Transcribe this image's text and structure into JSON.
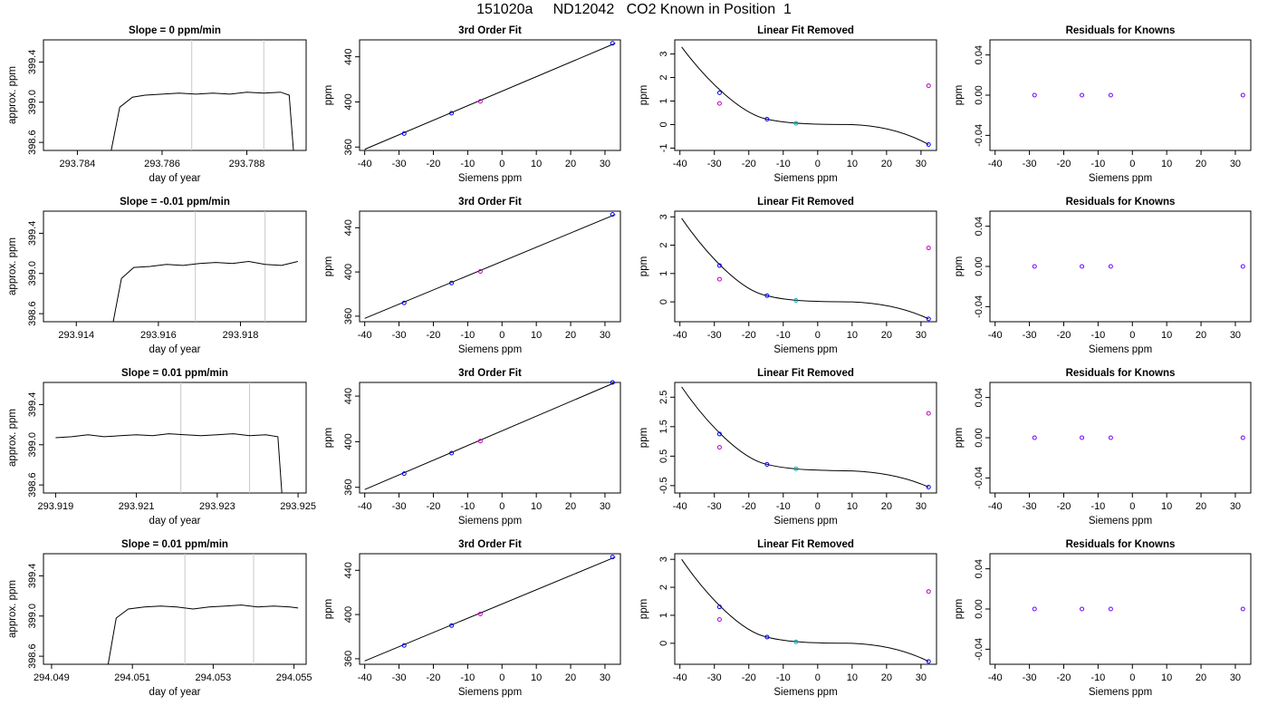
{
  "page_title": "151020a     ND12042   CO2 Known in Position  1",
  "colors": {
    "axis": "#000000",
    "trace": "#000000",
    "fit_line": "#000000",
    "vline": "#c8c8c8",
    "point_blue": "#0000ff",
    "point_magenta": "#c000c0",
    "point_cyan": "#00b0c0",
    "point_purple": "#8000ff",
    "residual_point": "#7000ff"
  },
  "common": {
    "ts_xlabel": "day of year",
    "ts_ylabel": "approx. ppm",
    "fit_title": "3rd Order Fit",
    "fit_xlabel": "Siemens ppm",
    "fit_ylabel": "ppm",
    "lin_title": "Linear Fit Removed",
    "lin_xlabel": "Siemens ppm",
    "lin_ylabel": "ppm",
    "res_title": "Residuals for Knowns",
    "res_xlabel": "Siemens ppm",
    "res_ylabel": "ppm"
  },
  "chart_data": [
    {
      "type": "line",
      "row": 1,
      "panel": "timeseries",
      "title": "Slope =  0  ppm/min",
      "xlabel": "day of year",
      "ylabel": "approx. ppm",
      "xlim": [
        293.7832,
        293.7894
      ],
      "ylim": [
        398.52,
        399.62
      ],
      "xticks": [
        "293.784",
        "293.786",
        "293.788"
      ],
      "yticks": [
        "398.6",
        "399.0",
        "399.4"
      ],
      "vlines": [
        293.7867,
        293.7884
      ],
      "series": [
        {
          "x": [
            293.7848,
            293.785,
            293.7853,
            293.7856,
            293.786,
            293.7864,
            293.7868,
            293.7872,
            293.7876,
            293.788,
            293.7884,
            293.7888,
            293.789,
            293.7891
          ],
          "y": [
            398.5,
            398.95,
            399.05,
            399.07,
            399.08,
            399.09,
            399.08,
            399.09,
            399.08,
            399.1,
            399.09,
            399.1,
            399.07,
            398.5
          ]
        }
      ]
    },
    {
      "type": "line",
      "row": 1,
      "panel": "third_order_fit",
      "title": "3rd Order Fit",
      "xlabel": "Siemens ppm",
      "ylabel": "ppm",
      "xlim": [
        -41.5,
        34.5
      ],
      "ylim": [
        357,
        455
      ],
      "xticks": [
        "-40",
        "-30",
        "-20",
        "-10",
        "0",
        "10",
        "20",
        "30"
      ],
      "yticks": [
        "360",
        "400",
        "440"
      ],
      "fit_line": {
        "x": [
          -40,
          33
        ],
        "y": [
          358,
          452
        ]
      },
      "points": {
        "x": [
          -28.5,
          -14.7,
          -6.3,
          32.2
        ],
        "y": [
          372,
          390,
          400.5,
          452
        ]
      }
    },
    {
      "type": "scatter",
      "row": 1,
      "panel": "linear_fit_removed",
      "title": "Linear Fit Removed",
      "xlabel": "Siemens ppm",
      "ylabel": "ppm",
      "xlim": [
        -41.5,
        34.5
      ],
      "ylim": [
        -1.1,
        3.6
      ],
      "xticks": [
        "-40",
        "-30",
        "-20",
        "-10",
        "0",
        "10",
        "20",
        "30"
      ],
      "yticks": [
        "-1",
        "0",
        "1",
        "2",
        "3"
      ],
      "curve": [
        3.3,
        0.44,
        0.1
      ],
      "points_fit": {
        "x": [
          -28.5,
          -14.7,
          -6.3,
          32.2
        ],
        "y": [
          1.35,
          0.23,
          0.05,
          -0.85
        ]
      },
      "points_raw": {
        "x": [
          -28.5,
          32.2
        ],
        "y": [
          0.9,
          1.65
        ]
      }
    },
    {
      "type": "scatter",
      "row": 1,
      "panel": "residuals",
      "title": "Residuals for Knowns",
      "xlabel": "Siemens ppm",
      "ylabel": "ppm",
      "xlim": [
        -41.5,
        34.5
      ],
      "ylim": [
        -0.055,
        0.055
      ],
      "xticks": [
        "-40",
        "-30",
        "-20",
        "-10",
        "0",
        "10",
        "20",
        "30"
      ],
      "yticks": [
        "-0.04",
        "0.00",
        "0.04"
      ],
      "points": {
        "x": [
          -28.5,
          -14.7,
          -6.3,
          32.2
        ],
        "y": [
          0,
          0,
          0,
          0
        ]
      }
    },
    {
      "type": "line",
      "row": 2,
      "panel": "timeseries",
      "title": "Slope =  -0.01  ppm/min",
      "xlabel": "day of year",
      "ylabel": "approx. ppm",
      "xlim": [
        293.9132,
        293.9196
      ],
      "ylim": [
        398.52,
        399.62
      ],
      "xticks": [
        "293.914",
        "293.916",
        "293.918"
      ],
      "yticks": [
        "398.6",
        "399.0",
        "399.4"
      ],
      "vlines": [
        293.9169,
        293.9186
      ],
      "series": [
        {
          "x": [
            293.9149,
            293.9151,
            293.9154,
            293.9158,
            293.9162,
            293.9166,
            293.917,
            293.9174,
            293.9178,
            293.9182,
            293.9186,
            293.919,
            293.9194
          ],
          "y": [
            398.52,
            398.95,
            399.06,
            399.07,
            399.09,
            399.08,
            399.1,
            399.11,
            399.1,
            399.12,
            399.09,
            399.08,
            399.12
          ]
        }
      ]
    },
    {
      "type": "line",
      "row": 2,
      "panel": "third_order_fit",
      "title": "3rd Order Fit",
      "xlabel": "Siemens ppm",
      "ylabel": "ppm",
      "xlim": [
        -41.5,
        34.5
      ],
      "ylim": [
        355,
        455
      ],
      "xticks": [
        "-40",
        "-30",
        "-20",
        "-10",
        "0",
        "10",
        "20",
        "30"
      ],
      "yticks": [
        "360",
        "400",
        "440"
      ],
      "fit_line": {
        "x": [
          -40,
          33
        ],
        "y": [
          358,
          452
        ]
      },
      "points": {
        "x": [
          -28.5,
          -14.7,
          -6.3,
          32.2
        ],
        "y": [
          372,
          390,
          400.5,
          452
        ]
      }
    },
    {
      "type": "scatter",
      "row": 2,
      "panel": "linear_fit_removed",
      "title": "Linear Fit Removed",
      "xlabel": "Siemens ppm",
      "ylabel": "ppm",
      "xlim": [
        -41.5,
        34.5
      ],
      "ylim": [
        -0.7,
        3.2
      ],
      "xticks": [
        "-40",
        "-30",
        "-20",
        "-10",
        "0",
        "10",
        "20",
        "30"
      ],
      "yticks": [
        "0",
        "1",
        "2",
        "3"
      ],
      "curve": [
        2.95,
        0.37,
        0.07
      ],
      "points_fit": {
        "x": [
          -28.5,
          -14.7,
          -6.3,
          32.2
        ],
        "y": [
          1.28,
          0.22,
          0.05,
          -0.6
        ]
      },
      "points_raw": {
        "x": [
          -28.5,
          32.2
        ],
        "y": [
          0.8,
          1.9
        ]
      }
    },
    {
      "type": "scatter",
      "row": 2,
      "panel": "residuals",
      "title": "Residuals for Knowns",
      "xlabel": "Siemens ppm",
      "ylabel": "ppm",
      "xlim": [
        -41.5,
        34.5
      ],
      "ylim": [
        -0.055,
        0.055
      ],
      "xticks": [
        "-40",
        "-30",
        "-20",
        "-10",
        "0",
        "10",
        "20",
        "30"
      ],
      "yticks": [
        "-0.04",
        "0.00",
        "0.04"
      ],
      "points": {
        "x": [
          -28.5,
          -14.7,
          -6.3,
          32.2
        ],
        "y": [
          0,
          0,
          0,
          0
        ]
      }
    },
    {
      "type": "line",
      "row": 3,
      "panel": "timeseries",
      "title": "Slope =  0.01  ppm/min",
      "xlabel": "day of year",
      "ylabel": "approx. ppm",
      "xlim": [
        293.9187,
        293.9252
      ],
      "ylim": [
        398.52,
        399.62
      ],
      "xticks": [
        "293.919",
        "293.921",
        "293.923",
        "293.925"
      ],
      "yticks": [
        "398.6",
        "399.0",
        "399.4"
      ],
      "vlines": [
        293.9221,
        293.9238
      ],
      "series": [
        {
          "x": [
            293.919,
            293.9194,
            293.9198,
            293.9202,
            293.9206,
            293.921,
            293.9214,
            293.9218,
            293.9222,
            293.9226,
            293.923,
            293.9234,
            293.9238,
            293.9242,
            293.9245,
            293.9246
          ],
          "y": [
            399.07,
            399.08,
            399.1,
            399.08,
            399.09,
            399.1,
            399.09,
            399.11,
            399.1,
            399.09,
            399.1,
            399.11,
            399.09,
            399.1,
            399.08,
            398.5
          ]
        }
      ]
    },
    {
      "type": "line",
      "row": 3,
      "panel": "third_order_fit",
      "title": "3rd Order Fit",
      "xlabel": "Siemens ppm",
      "ylabel": "ppm",
      "xlim": [
        -41.5,
        34.5
      ],
      "ylim": [
        355,
        452
      ],
      "xticks": [
        "-40",
        "-30",
        "-20",
        "-10",
        "0",
        "10",
        "20",
        "30"
      ],
      "yticks": [
        "360",
        "400",
        "440"
      ],
      "fit_line": {
        "x": [
          -40,
          33
        ],
        "y": [
          358,
          452
        ]
      },
      "points": {
        "x": [
          -28.5,
          -14.7,
          -6.3,
          32.2
        ],
        "y": [
          372,
          390,
          400.5,
          452
        ]
      }
    },
    {
      "type": "scatter",
      "row": 3,
      "panel": "linear_fit_removed",
      "title": "Linear Fit Removed",
      "xlabel": "Siemens ppm",
      "ylabel": "ppm",
      "xlim": [
        -41.5,
        34.5
      ],
      "ylim": [
        -0.75,
        3.0
      ],
      "xticks": [
        "-40",
        "-30",
        "-20",
        "-10",
        "0",
        "10",
        "20",
        "30"
      ],
      "yticks": [
        "-0.5",
        "0.5",
        "1.5",
        "2.5"
      ],
      "curve": [
        2.85,
        0.4,
        0.1
      ],
      "points_fit": {
        "x": [
          -28.5,
          -14.7,
          -6.3,
          32.2
        ],
        "y": [
          1.25,
          0.22,
          0.07,
          -0.55
        ]
      },
      "points_raw": {
        "x": [
          -28.5,
          32.2
        ],
        "y": [
          0.8,
          1.95
        ]
      }
    },
    {
      "type": "scatter",
      "row": 3,
      "panel": "residuals",
      "title": "Residuals for Knowns",
      "xlabel": "Siemens ppm",
      "ylabel": "ppm",
      "xlim": [
        -41.5,
        34.5
      ],
      "ylim": [
        -0.055,
        0.055
      ],
      "xticks": [
        "-40",
        "-30",
        "-20",
        "-10",
        "0",
        "10",
        "20",
        "30"
      ],
      "yticks": [
        "-0.04",
        "0.00",
        "0.04"
      ],
      "points": {
        "x": [
          -28.5,
          -14.7,
          -6.3,
          32.2
        ],
        "y": [
          0,
          0,
          0,
          0
        ]
      }
    },
    {
      "type": "line",
      "row": 4,
      "panel": "timeseries",
      "title": "Slope =  0.01  ppm/min",
      "xlabel": "day of year",
      "ylabel": "approx. ppm",
      "xlim": [
        294.0488,
        294.0553
      ],
      "ylim": [
        398.52,
        399.62
      ],
      "xticks": [
        "294.049",
        "294.051",
        "294.053",
        "294.055"
      ],
      "yticks": [
        "398.6",
        "399.0",
        "399.4"
      ],
      "vlines": [
        294.0523,
        294.054
      ],
      "series": [
        {
          "x": [
            294.0504,
            294.0506,
            294.0509,
            294.0513,
            294.0517,
            294.0521,
            294.0525,
            294.0529,
            294.0533,
            294.0537,
            294.0541,
            294.0545,
            294.0549,
            294.0551
          ],
          "y": [
            398.52,
            398.98,
            399.07,
            399.09,
            399.1,
            399.09,
            399.07,
            399.09,
            399.1,
            399.11,
            399.09,
            399.1,
            399.09,
            399.08
          ]
        }
      ]
    },
    {
      "type": "line",
      "row": 4,
      "panel": "third_order_fit",
      "title": "3rd Order Fit",
      "xlabel": "Siemens ppm",
      "ylabel": "ppm",
      "xlim": [
        -41.5,
        34.5
      ],
      "ylim": [
        355,
        455
      ],
      "xticks": [
        "-40",
        "-30",
        "-20",
        "-10",
        "0",
        "10",
        "20",
        "30"
      ],
      "yticks": [
        "360",
        "400",
        "440"
      ],
      "fit_line": {
        "x": [
          -40,
          33
        ],
        "y": [
          358,
          452
        ]
      },
      "points": {
        "x": [
          -28.5,
          -14.7,
          -6.3,
          32.2
        ],
        "y": [
          372,
          390,
          400.5,
          452
        ]
      }
    },
    {
      "type": "scatter",
      "row": 4,
      "panel": "linear_fit_removed",
      "title": "Linear Fit Removed",
      "xlabel": "Siemens ppm",
      "ylabel": "ppm",
      "xlim": [
        -41.5,
        34.5
      ],
      "ylim": [
        -0.75,
        3.2
      ],
      "xticks": [
        "-40",
        "-30",
        "-20",
        "-10",
        "0",
        "10",
        "20",
        "30"
      ],
      "yticks": [
        "0",
        "1",
        "2",
        "3"
      ],
      "curve": [
        3.0,
        0.4,
        0.07
      ],
      "points_fit": {
        "x": [
          -28.5,
          -14.7,
          -6.3,
          32.2
        ],
        "y": [
          1.3,
          0.22,
          0.05,
          -0.65
        ]
      },
      "points_raw": {
        "x": [
          -28.5,
          32.2
        ],
        "y": [
          0.85,
          1.85
        ]
      }
    },
    {
      "type": "scatter",
      "row": 4,
      "panel": "residuals",
      "title": "Residuals for Knowns",
      "xlabel": "Siemens ppm",
      "ylabel": "ppm",
      "xlim": [
        -41.5,
        34.5
      ],
      "ylim": [
        -0.055,
        0.055
      ],
      "xticks": [
        "-40",
        "-30",
        "-20",
        "-10",
        "0",
        "10",
        "20",
        "30"
      ],
      "yticks": [
        "-0.04",
        "0.00",
        "0.04"
      ],
      "points": {
        "x": [
          -28.5,
          -14.7,
          -6.3,
          32.2
        ],
        "y": [
          0,
          0,
          0,
          0
        ]
      }
    }
  ]
}
